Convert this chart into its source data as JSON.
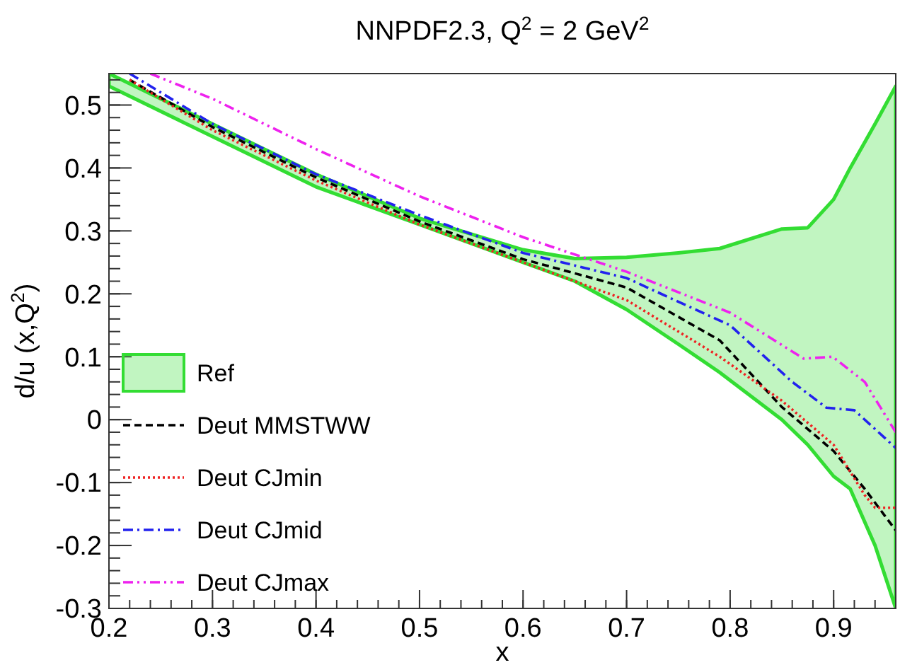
{
  "chart_data": {
    "type": "line",
    "title": "NNPDF2.3,  Q$^{2}$ = 2 GeV$^{2}$",
    "xlabel": "x",
    "ylabel": "d/u (x,Q$^{2}$)",
    "xlim": [
      0.2,
      0.96
    ],
    "ylim": [
      -0.3,
      0.55
    ],
    "xticks": [
      0.2,
      0.3,
      0.4,
      0.5,
      0.6,
      0.7,
      0.8,
      0.9
    ],
    "yticks": [
      -0.3,
      -0.2,
      -0.1,
      0,
      0.1,
      0.2,
      0.3,
      0.4,
      0.5
    ],
    "grid": false,
    "legend": "bottom left",
    "series": [
      {
        "name": "Ref",
        "type": "area",
        "color": "#33dd33",
        "values": [
          null,
          null,
          null,
          null,
          null,
          null,
          null,
          null,
          null,
          null,
          null,
          null,
          null,
          null,
          null
        ],
        "x": [
          0.2,
          0.3,
          0.4,
          0.5,
          0.6,
          0.65,
          0.7,
          0.75,
          0.79,
          0.85,
          0.875,
          0.9,
          0.916,
          0.94,
          0.96
        ],
        "upper": [
          0.55,
          0.47,
          0.39,
          0.32,
          0.27,
          0.256,
          0.258,
          0.265,
          0.272,
          0.303,
          0.305,
          0.35,
          0.4,
          0.47,
          0.53
        ],
        "lower": [
          0.53,
          0.45,
          0.37,
          0.31,
          0.25,
          0.22,
          0.175,
          0.12,
          0.075,
          0,
          -0.04,
          -0.09,
          -0.11,
          -0.2,
          -0.3
        ]
      },
      {
        "name": "Deut MMSTWW",
        "color": "#000000",
        "line_style": "dashed",
        "x": [
          0.22,
          0.3,
          0.4,
          0.5,
          0.6,
          0.7,
          0.79,
          0.85,
          0.9,
          0.93,
          0.96
        ],
        "values": [
          0.54,
          0.465,
          0.385,
          0.315,
          0.255,
          0.21,
          0.126,
          0.02,
          -0.05,
          -0.11,
          -0.176
        ]
      },
      {
        "name": "Deut CJmin",
        "color": "#ee2222",
        "line_style": "dotted",
        "x": [
          0.22,
          0.3,
          0.4,
          0.5,
          0.6,
          0.7,
          0.79,
          0.85,
          0.9,
          0.93,
          0.94,
          0.96
        ],
        "values": [
          0.54,
          0.46,
          0.38,
          0.31,
          0.25,
          0.19,
          0.1,
          0.03,
          -0.04,
          -0.12,
          -0.14,
          -0.14
        ]
      },
      {
        "name": "Deut CJmid",
        "color": "#2222ee",
        "line_style": "dashdot",
        "x": [
          0.22,
          0.3,
          0.4,
          0.5,
          0.6,
          0.7,
          0.8,
          0.86,
          0.893,
          0.92,
          0.96
        ],
        "values": [
          0.55,
          0.47,
          0.39,
          0.325,
          0.265,
          0.225,
          0.15,
          0.06,
          0.019,
          0.015,
          -0.045
        ]
      },
      {
        "name": "Deut CJmax",
        "color": "#ee22ee",
        "line_style": "dashdotdot",
        "x": [
          0.24,
          0.3,
          0.4,
          0.5,
          0.6,
          0.7,
          0.8,
          0.871,
          0.899,
          0.93,
          0.945,
          0.96
        ],
        "values": [
          0.55,
          0.51,
          0.43,
          0.355,
          0.29,
          0.235,
          0.17,
          0.097,
          0.1,
          0.06,
          0.02,
          -0.02
        ]
      }
    ]
  }
}
